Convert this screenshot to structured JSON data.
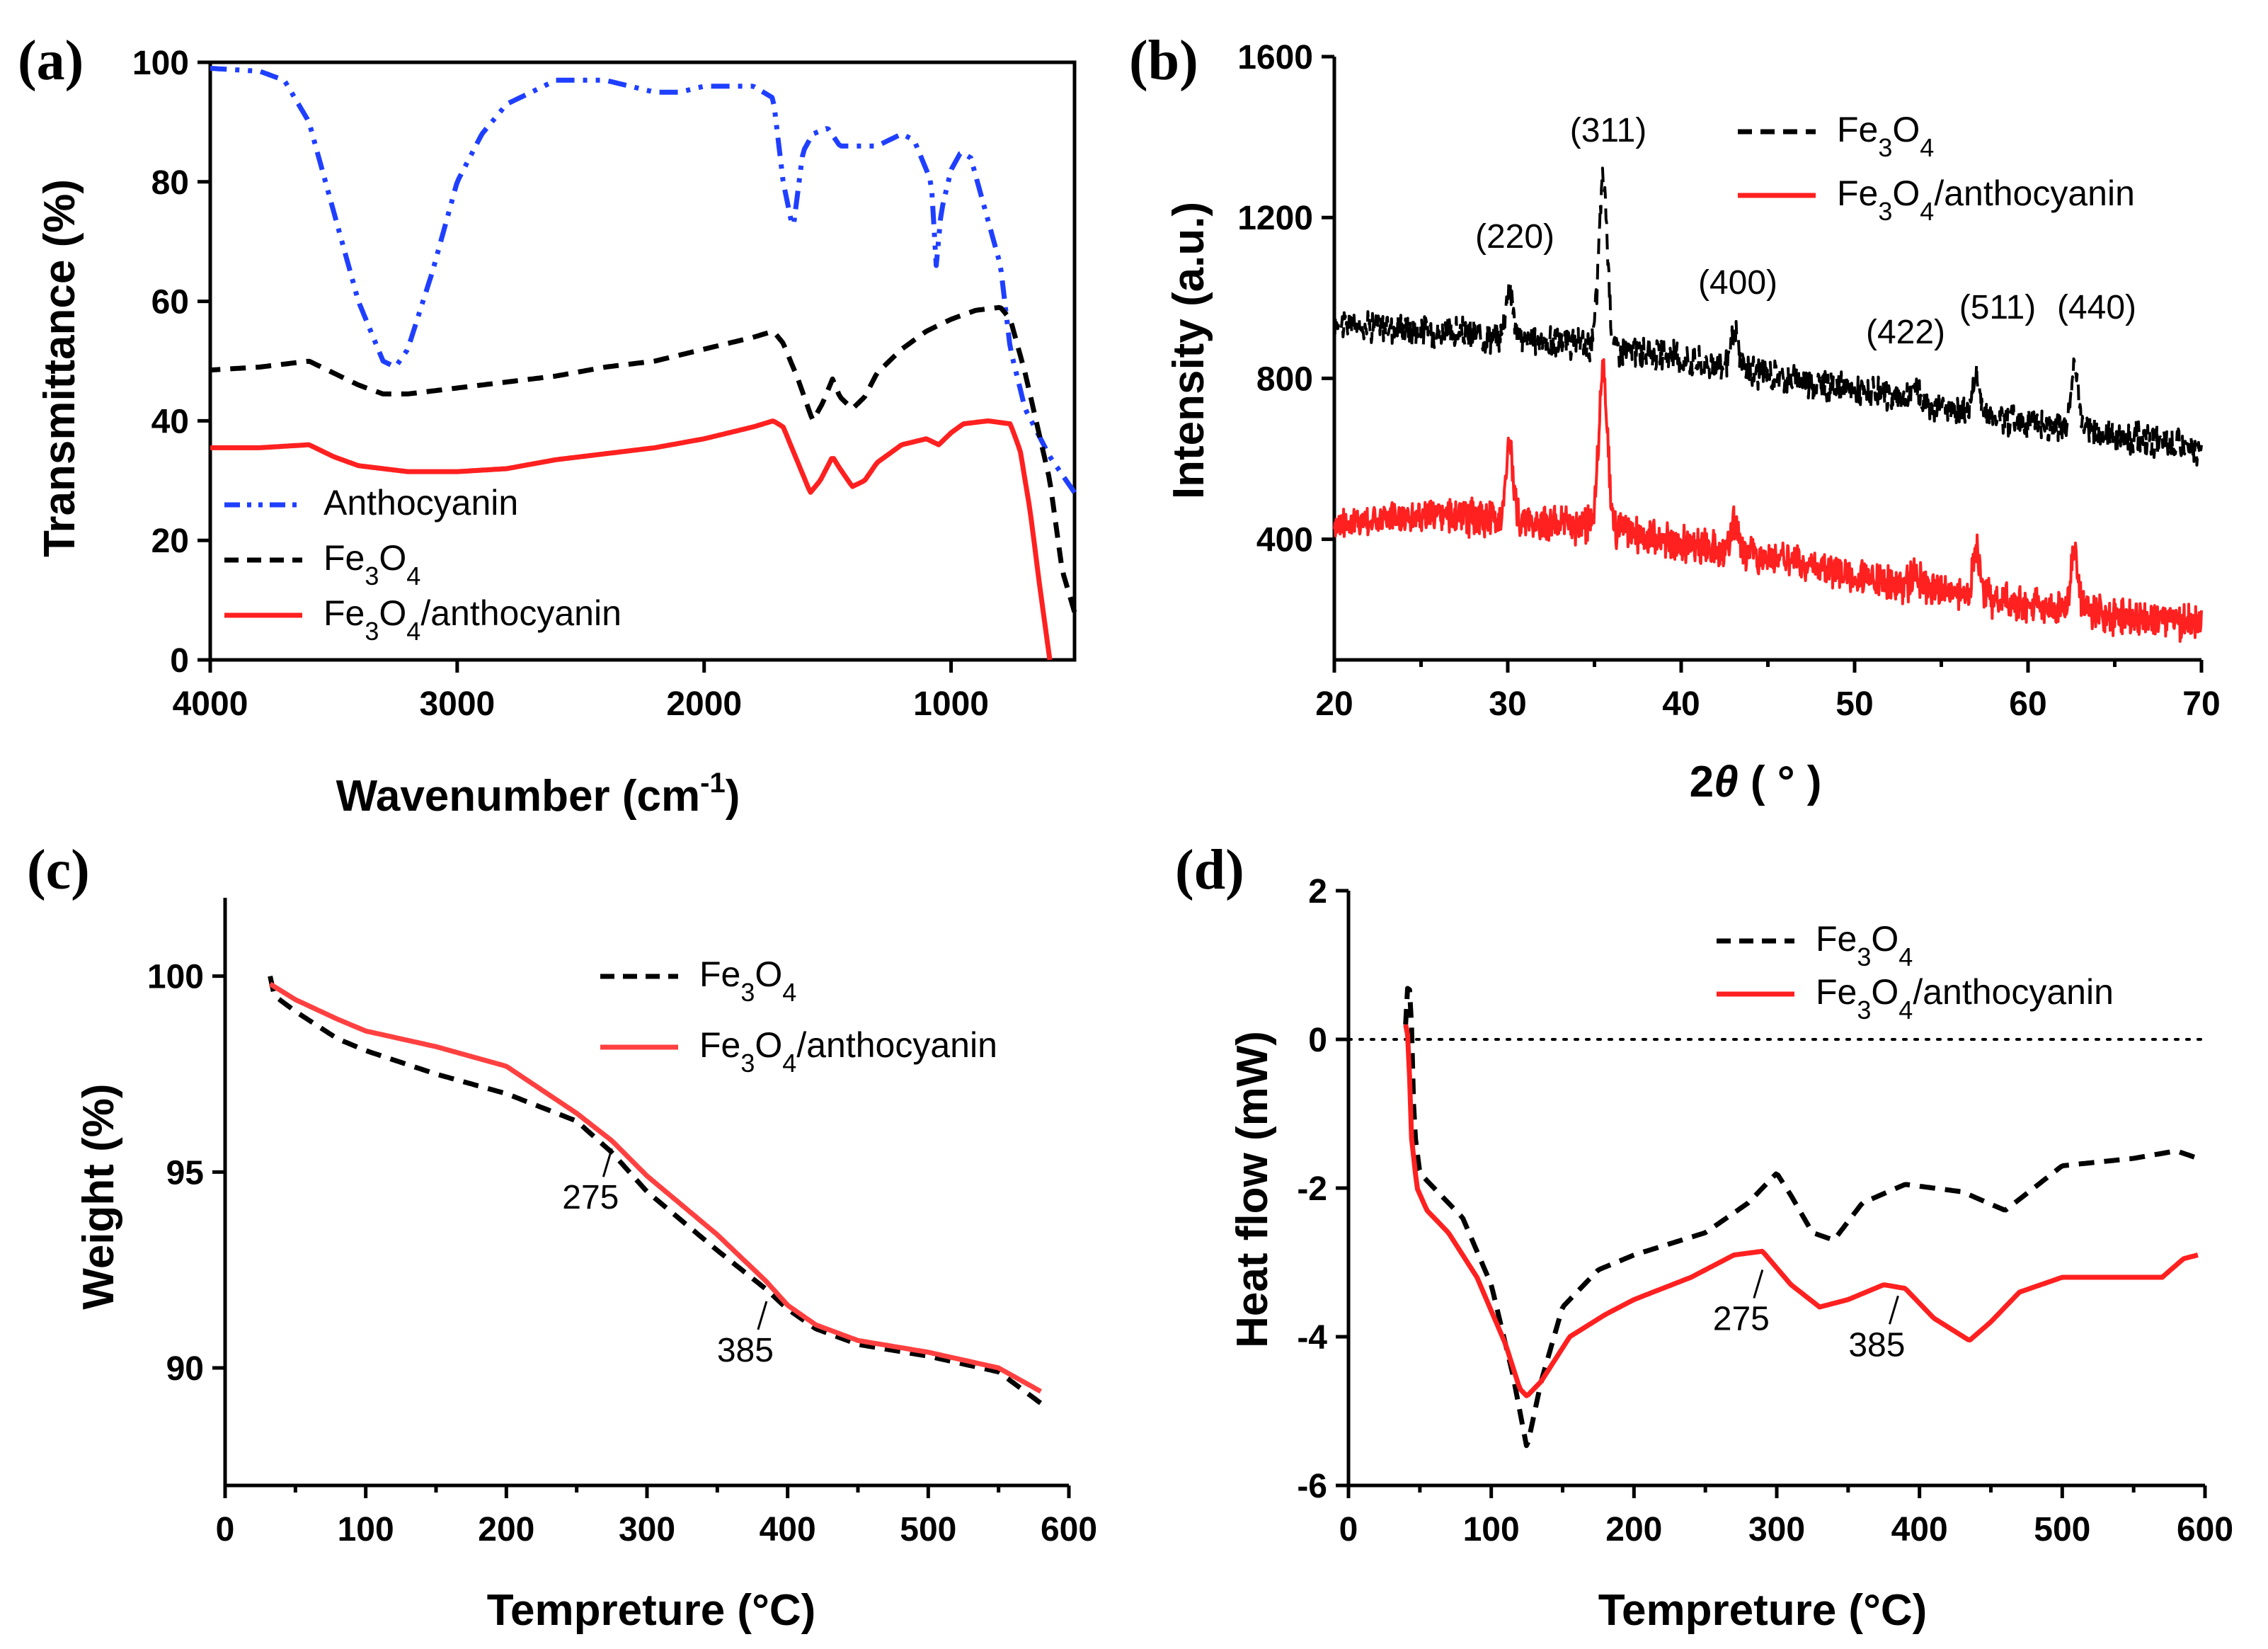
{
  "chart_data": [
    {
      "panel": "(a)",
      "type": "line",
      "xlabel": "Wavenumber (cm",
      "xlabel_sup": "-1",
      "xlabel_end": ")",
      "ylabel": "Transmittance (%)",
      "xlim": [
        4000,
        500
      ],
      "ylim": [
        0,
        100
      ],
      "xticks": [
        4000,
        3000,
        2000,
        1000
      ],
      "yticks": [
        0,
        20,
        40,
        60,
        80,
        100
      ],
      "legend": {
        "position": "bottom-left"
      },
      "series": [
        {
          "name": "Anthocyanin",
          "color": "#1f3fff",
          "dash": "dash-dot-dot",
          "points": [
            [
              4000,
              99
            ],
            [
              3800,
              98.5
            ],
            [
              3700,
              97
            ],
            [
              3600,
              90
            ],
            [
              3500,
              75
            ],
            [
              3400,
              60
            ],
            [
              3300,
              50
            ],
            [
              3250,
              49
            ],
            [
              3200,
              52
            ],
            [
              3100,
              65
            ],
            [
              3000,
              80
            ],
            [
              2900,
              88
            ],
            [
              2800,
              93
            ],
            [
              2600,
              97
            ],
            [
              2400,
              97
            ],
            [
              2200,
              95
            ],
            [
              2100,
              95
            ],
            [
              2000,
              96
            ],
            [
              1800,
              96
            ],
            [
              1720,
              94
            ],
            [
              1680,
              80
            ],
            [
              1640,
              72
            ],
            [
              1600,
              85
            ],
            [
              1560,
              88
            ],
            [
              1500,
              89
            ],
            [
              1450,
              86
            ],
            [
              1400,
              86
            ],
            [
              1300,
              86
            ],
            [
              1200,
              88
            ],
            [
              1150,
              87
            ],
            [
              1080,
              80
            ],
            [
              1060,
              66
            ],
            [
              1040,
              75
            ],
            [
              1000,
              82
            ],
            [
              960,
              85
            ],
            [
              920,
              84
            ],
            [
              880,
              78
            ],
            [
              800,
              66
            ],
            [
              760,
              52
            ],
            [
              700,
              42
            ],
            [
              600,
              34
            ],
            [
              500,
              28
            ]
          ]
        },
        {
          "name": "Fe3O4",
          "color": "#000000",
          "dash": "dash",
          "points": [
            [
              4000,
              48.5
            ],
            [
              3800,
              49
            ],
            [
              3600,
              50
            ],
            [
              3500,
              48
            ],
            [
              3400,
              46
            ],
            [
              3300,
              44.5
            ],
            [
              3200,
              44.5
            ],
            [
              3000,
              45.5
            ],
            [
              2800,
              46.5
            ],
            [
              2600,
              47.5
            ],
            [
              2400,
              49
            ],
            [
              2200,
              50
            ],
            [
              2000,
              52
            ],
            [
              1800,
              54
            ],
            [
              1720,
              55
            ],
            [
              1680,
              53
            ],
            [
              1620,
              47
            ],
            [
              1560,
              40
            ],
            [
              1520,
              43
            ],
            [
              1480,
              47
            ],
            [
              1450,
              44
            ],
            [
              1400,
              42
            ],
            [
              1350,
              44
            ],
            [
              1300,
              48
            ],
            [
              1200,
              52
            ],
            [
              1100,
              55
            ],
            [
              1000,
              57
            ],
            [
              900,
              58.5
            ],
            [
              800,
              59
            ],
            [
              760,
              57
            ],
            [
              700,
              48
            ],
            [
              600,
              30
            ],
            [
              550,
              15
            ],
            [
              500,
              8
            ]
          ]
        },
        {
          "name": "Fe3O4/anthocyanin",
          "color": "#ff2020",
          "dash": "solid",
          "points": [
            [
              4000,
              35.5
            ],
            [
              3800,
              35.5
            ],
            [
              3600,
              36
            ],
            [
              3500,
              34
            ],
            [
              3400,
              32.5
            ],
            [
              3200,
              31.5
            ],
            [
              3000,
              31.5
            ],
            [
              2800,
              32
            ],
            [
              2600,
              33.5
            ],
            [
              2400,
              34.5
            ],
            [
              2200,
              35.5
            ],
            [
              2000,
              37
            ],
            [
              1800,
              39
            ],
            [
              1720,
              40
            ],
            [
              1680,
              39
            ],
            [
              1620,
              33
            ],
            [
              1570,
              28
            ],
            [
              1530,
              30
            ],
            [
              1480,
              34
            ],
            [
              1450,
              32
            ],
            [
              1400,
              29
            ],
            [
              1350,
              30
            ],
            [
              1300,
              33
            ],
            [
              1200,
              36
            ],
            [
              1100,
              37
            ],
            [
              1050,
              36
            ],
            [
              1000,
              38
            ],
            [
              950,
              39.5
            ],
            [
              850,
              40
            ],
            [
              760,
              39.5
            ],
            [
              720,
              35
            ],
            [
              680,
              25
            ],
            [
              640,
              12
            ],
            [
              600,
              0
            ]
          ]
        }
      ]
    },
    {
      "panel": "(b)",
      "type": "line",
      "xlabel": "2",
      "xlabel_theta": "θ",
      "xlabel_end": " ( ° )",
      "ylabel": "Intensity (a.u.)",
      "xlim": [
        20,
        70
      ],
      "ylim": [
        100,
        1600
      ],
      "xticks": [
        20,
        30,
        40,
        50,
        60,
        70
      ],
      "yticks": [
        400,
        800,
        1200,
        1600
      ],
      "legend": {
        "position": "top-right"
      },
      "peaks": [
        {
          "x": 30.1,
          "label": "(220)"
        },
        {
          "x": 35.5,
          "label": "(311)"
        },
        {
          "x": 43.1,
          "label": "(400)"
        },
        {
          "x": 53.5,
          "label": "(422)"
        },
        {
          "x": 57.0,
          "label": "(511)"
        },
        {
          "x": 62.7,
          "label": "(440)"
        }
      ],
      "series": [
        {
          "name": "Fe3O4",
          "color": "#000000",
          "dash": "dash",
          "baseline": [
            [
              20,
              940
            ],
            [
              25,
              920
            ],
            [
              30,
              900
            ],
            [
              35,
              880
            ],
            [
              40,
              850
            ],
            [
              45,
              810
            ],
            [
              50,
              770
            ],
            [
              55,
              730
            ],
            [
              60,
              690
            ],
            [
              65,
              660
            ],
            [
              70,
              620
            ]
          ],
          "peak_heights": [
            130,
            420,
            90,
            40,
            90,
            150
          ],
          "noise": 30
        },
        {
          "name": "Fe3O4/anthocyanin",
          "color": "#ff2020",
          "dash": "solid",
          "baseline": [
            [
              20,
              440
            ],
            [
              25,
              460
            ],
            [
              30,
              450
            ],
            [
              35,
              430
            ],
            [
              40,
              390
            ],
            [
              45,
              360
            ],
            [
              50,
              310
            ],
            [
              55,
              270
            ],
            [
              60,
              240
            ],
            [
              65,
              210
            ],
            [
              70,
              190
            ]
          ],
          "peak_heights": [
            180,
            400,
            70,
            40,
            110,
            150
          ],
          "noise": 35
        }
      ]
    },
    {
      "panel": "(c)",
      "type": "line",
      "xlabel": "Tempreture (°C)",
      "ylabel": "Weight (%)",
      "xlim": [
        0,
        600
      ],
      "ylim": [
        87,
        102
      ],
      "xticks": [
        0,
        100,
        200,
        300,
        400,
        500,
        600
      ],
      "yticks": [
        90,
        95,
        100
      ],
      "legend": {
        "position": "top-right"
      },
      "annotations": [
        {
          "x": 275,
          "y": 95.6,
          "label": "275"
        },
        {
          "x": 385,
          "y": 91.7,
          "label": "385"
        }
      ],
      "series": [
        {
          "name": "Fe3O4",
          "color": "#000000",
          "dash": "dash",
          "points": [
            [
              32,
              100
            ],
            [
              35,
              99.5
            ],
            [
              50,
              99.1
            ],
            [
              80,
              98.4
            ],
            [
              100,
              98.1
            ],
            [
              150,
              97.5
            ],
            [
              200,
              97.0
            ],
            [
              250,
              96.3
            ],
            [
              275,
              95.5
            ],
            [
              300,
              94.5
            ],
            [
              350,
              93.0
            ],
            [
              385,
              92.0
            ],
            [
              400,
              91.5
            ],
            [
              420,
              91.0
            ],
            [
              450,
              90.6
            ],
            [
              500,
              90.3
            ],
            [
              550,
              89.9
            ],
            [
              580,
              89.1
            ]
          ]
        },
        {
          "name": "Fe3O4/anthocyanin",
          "color": "#ff4040",
          "dash": "solid",
          "points": [
            [
              32,
              99.8
            ],
            [
              50,
              99.4
            ],
            [
              80,
              98.9
            ],
            [
              100,
              98.6
            ],
            [
              150,
              98.2
            ],
            [
              200,
              97.7
            ],
            [
              250,
              96.5
            ],
            [
              275,
              95.8
            ],
            [
              300,
              94.9
            ],
            [
              350,
              93.4
            ],
            [
              385,
              92.2
            ],
            [
              400,
              91.6
            ],
            [
              420,
              91.1
            ],
            [
              450,
              90.7
            ],
            [
              500,
              90.4
            ],
            [
              550,
              90.0
            ],
            [
              580,
              89.4
            ]
          ]
        }
      ]
    },
    {
      "panel": "(d)",
      "type": "line",
      "xlabel": "Tempreture (°C)",
      "ylabel": "Heat flow (mW)",
      "xlim": [
        0,
        600
      ],
      "ylim": [
        -6,
        2
      ],
      "xticks": [
        0,
        100,
        200,
        300,
        400,
        500,
        600
      ],
      "yticks": [
        -6,
        -4,
        -2,
        0,
        2
      ],
      "legend": {
        "position": "top-right"
      },
      "zero_line": true,
      "annotations": [
        {
          "x": 290,
          "y": -3.1,
          "label": "275"
        },
        {
          "x": 385,
          "y": -3.45,
          "label": "385"
        }
      ],
      "series": [
        {
          "name": "Fe3O4",
          "color": "#000000",
          "dash": "dash",
          "points": [
            [
              40,
              0.2
            ],
            [
              42,
              0.9
            ],
            [
              44,
              0.3
            ],
            [
              46,
              -1.2
            ],
            [
              50,
              -1.8
            ],
            [
              60,
              -2.0
            ],
            [
              80,
              -2.4
            ],
            [
              100,
              -3.3
            ],
            [
              115,
              -4.5
            ],
            [
              125,
              -5.5
            ],
            [
              135,
              -4.6
            ],
            [
              150,
              -3.6
            ],
            [
              175,
              -3.1
            ],
            [
              200,
              -2.9
            ],
            [
              250,
              -2.6
            ],
            [
              280,
              -2.2
            ],
            [
              300,
              -1.8
            ],
            [
              310,
              -2.1
            ],
            [
              325,
              -2.6
            ],
            [
              340,
              -2.7
            ],
            [
              360,
              -2.2
            ],
            [
              390,
              -1.95
            ],
            [
              430,
              -2.05
            ],
            [
              460,
              -2.3
            ],
            [
              500,
              -1.7
            ],
            [
              550,
              -1.6
            ],
            [
              580,
              -1.5
            ],
            [
              595,
              -1.6
            ]
          ]
        },
        {
          "name": "Fe3O4/anthocyanin",
          "color": "#ff2020",
          "dash": "solid",
          "points": [
            [
              40,
              0.2
            ],
            [
              42,
              0
            ],
            [
              44,
              -1.3
            ],
            [
              48,
              -2.0
            ],
            [
              55,
              -2.3
            ],
            [
              70,
              -2.6
            ],
            [
              90,
              -3.2
            ],
            [
              110,
              -4.1
            ],
            [
              120,
              -4.7
            ],
            [
              125,
              -4.8
            ],
            [
              135,
              -4.6
            ],
            [
              155,
              -4.0
            ],
            [
              180,
              -3.7
            ],
            [
              200,
              -3.5
            ],
            [
              240,
              -3.2
            ],
            [
              270,
              -2.9
            ],
            [
              290,
              -2.85
            ],
            [
              310,
              -3.3
            ],
            [
              330,
              -3.6
            ],
            [
              350,
              -3.5
            ],
            [
              375,
              -3.3
            ],
            [
              390,
              -3.35
            ],
            [
              410,
              -3.75
            ],
            [
              435,
              -4.05
            ],
            [
              450,
              -3.8
            ],
            [
              470,
              -3.4
            ],
            [
              500,
              -3.2
            ],
            [
              550,
              -3.2
            ],
            [
              570,
              -3.2
            ],
            [
              585,
              -2.95
            ],
            [
              595,
              -2.9
            ]
          ]
        }
      ]
    }
  ]
}
